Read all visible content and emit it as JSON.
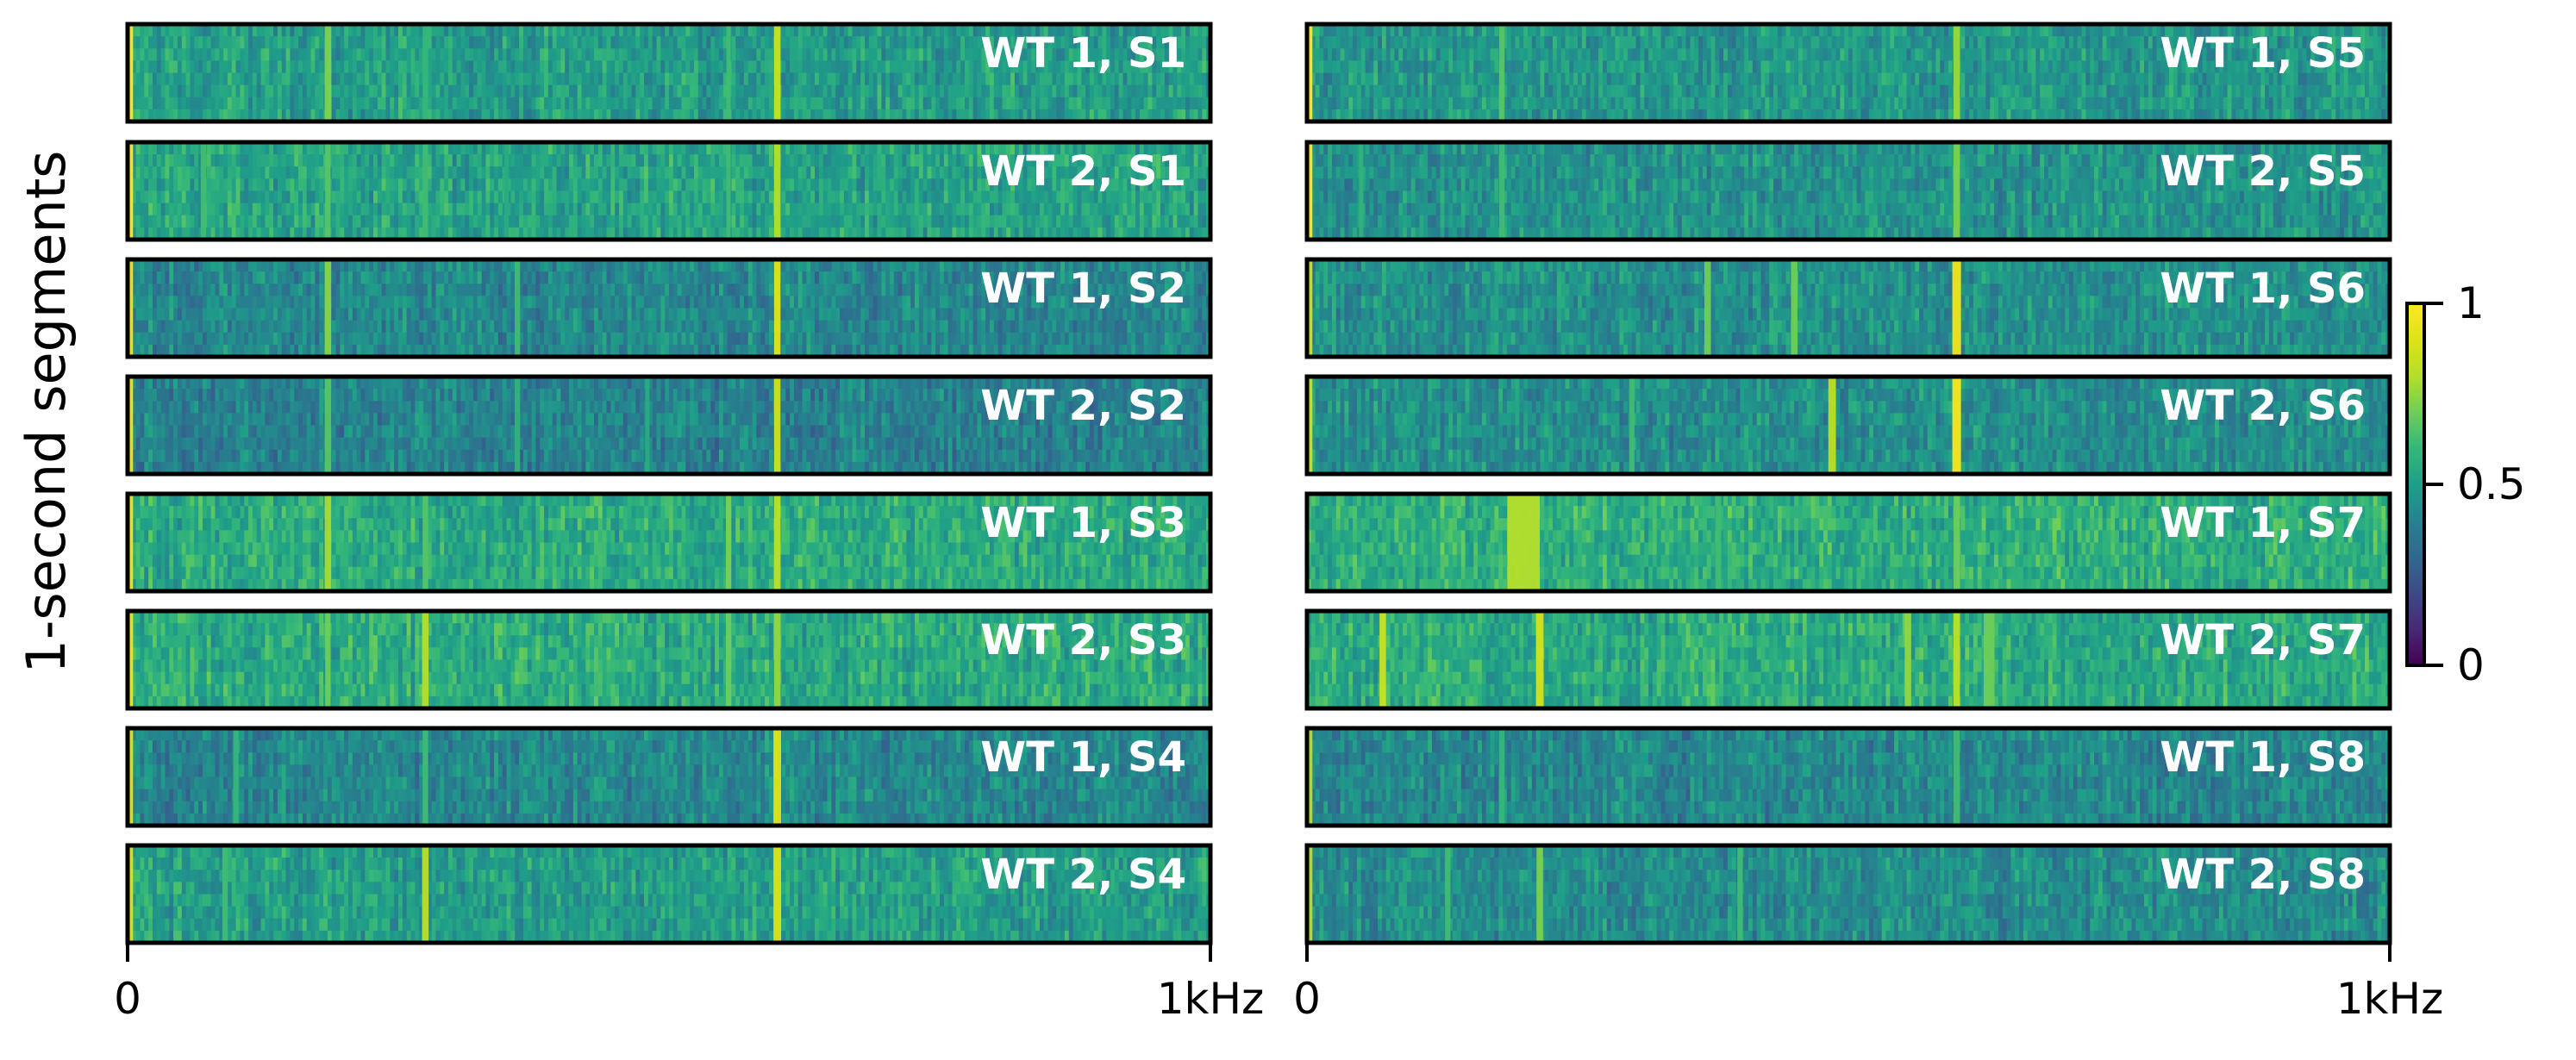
{
  "chart_data": {
    "type": "heatmap",
    "title": "",
    "ylabel": "1-second segments",
    "xlabel": "",
    "x_range": [
      "0",
      "1kHz"
    ],
    "colorbar": {
      "colormap": "viridis",
      "min": 0,
      "max": 1,
      "ticks": [
        {
          "value": 1,
          "label": "1"
        },
        {
          "value": 0.5,
          "label": "0.5"
        },
        {
          "value": 0,
          "label": "0"
        }
      ]
    },
    "baseline_level": 0.5,
    "panels": [
      {
        "name": "left",
        "x_tick_labels": [
          "0",
          "1kHz"
        ],
        "strips": [
          {
            "label": "WT 1, S1",
            "base": 0.5,
            "lines": [
              [
                0.003,
                1.0,
                0.004
              ],
              [
                0.185,
                0.72,
                0.006
              ],
              [
                0.275,
                0.6,
                0.005
              ],
              [
                0.6,
                0.85,
                0.006
              ],
              [
                0.555,
                0.62,
                0.004
              ]
            ]
          },
          {
            "label": "WT 2, S1",
            "base": 0.52,
            "lines": [
              [
                0.003,
                1.0,
                0.004
              ],
              [
                0.07,
                0.62,
                0.005
              ],
              [
                0.185,
                0.66,
                0.005
              ],
              [
                0.275,
                0.62,
                0.005
              ],
              [
                0.35,
                0.55,
                0.004
              ],
              [
                0.555,
                0.62,
                0.004
              ],
              [
                0.6,
                0.8,
                0.006
              ]
            ]
          },
          {
            "label": "WT 1, S2",
            "base": 0.42,
            "lines": [
              [
                0.003,
                0.95,
                0.004
              ],
              [
                0.185,
                0.74,
                0.006
              ],
              [
                0.36,
                0.62,
                0.005
              ],
              [
                0.6,
                0.92,
                0.006
              ]
            ]
          },
          {
            "label": "WT 2, S2",
            "base": 0.4,
            "lines": [
              [
                0.003,
                0.95,
                0.004
              ],
              [
                0.185,
                0.66,
                0.006
              ],
              [
                0.36,
                0.58,
                0.005
              ],
              [
                0.48,
                0.55,
                0.004
              ],
              [
                0.6,
                0.86,
                0.006
              ]
            ]
          },
          {
            "label": "WT 1, S3",
            "base": 0.55,
            "lines": [
              [
                0.003,
                0.95,
                0.004
              ],
              [
                0.185,
                0.78,
                0.006
              ],
              [
                0.275,
                0.66,
                0.005
              ],
              [
                0.555,
                0.72,
                0.005
              ],
              [
                0.6,
                0.82,
                0.006
              ]
            ]
          },
          {
            "label": "WT 2, S3",
            "base": 0.55,
            "lines": [
              [
                0.003,
                0.95,
                0.004
              ],
              [
                0.185,
                0.7,
                0.005
              ],
              [
                0.275,
                0.8,
                0.006
              ],
              [
                0.555,
                0.7,
                0.005
              ],
              [
                0.6,
                0.75,
                0.006
              ]
            ]
          },
          {
            "label": "WT 1, S4",
            "base": 0.42,
            "lines": [
              [
                0.003,
                0.9,
                0.004
              ],
              [
                0.1,
                0.6,
                0.005
              ],
              [
                0.275,
                0.62,
                0.005
              ],
              [
                0.6,
                0.92,
                0.007
              ]
            ]
          },
          {
            "label": "WT 2, S4",
            "base": 0.5,
            "lines": [
              [
                0.003,
                0.9,
                0.004
              ],
              [
                0.09,
                0.62,
                0.005
              ],
              [
                0.275,
                0.82,
                0.006
              ],
              [
                0.6,
                0.9,
                0.007
              ]
            ]
          }
        ]
      },
      {
        "name": "right",
        "x_tick_labels": [
          "0",
          "1kHz"
        ],
        "strips": [
          {
            "label": "WT 1, S5",
            "base": 0.48,
            "lines": [
              [
                0.003,
                1.0,
                0.004
              ],
              [
                0.18,
                0.66,
                0.005
              ],
              [
                0.6,
                0.76,
                0.006
              ]
            ]
          },
          {
            "label": "WT 2, S5",
            "base": 0.46,
            "lines": [
              [
                0.003,
                1.0,
                0.004
              ],
              [
                0.05,
                0.58,
                0.004
              ],
              [
                0.18,
                0.62,
                0.005
              ],
              [
                0.6,
                0.72,
                0.006
              ]
            ]
          },
          {
            "label": "WT 1, S6",
            "base": 0.45,
            "lines": [
              [
                0.003,
                0.85,
                0.004
              ],
              [
                0.37,
                0.7,
                0.006
              ],
              [
                0.45,
                0.7,
                0.006
              ],
              [
                0.6,
                0.96,
                0.008
              ]
            ]
          },
          {
            "label": "WT 2, S6",
            "base": 0.45,
            "lines": [
              [
                0.003,
                0.85,
                0.004
              ],
              [
                0.3,
                0.62,
                0.005
              ],
              [
                0.485,
                0.82,
                0.007
              ],
              [
                0.6,
                0.98,
                0.008
              ]
            ]
          },
          {
            "label": "WT 1, S7",
            "base": 0.56,
            "lines": [
              [
                0.2,
                0.8,
                0.03
              ],
              [
                0.38,
                0.62,
                0.005
              ],
              [
                0.6,
                0.7,
                0.006
              ]
            ]
          },
          {
            "label": "WT 2, S7",
            "base": 0.55,
            "lines": [
              [
                0.07,
                0.85,
                0.006
              ],
              [
                0.215,
                0.88,
                0.007
              ],
              [
                0.555,
                0.75,
                0.006
              ],
              [
                0.6,
                0.82,
                0.006
              ],
              [
                0.63,
                0.7,
                0.01
              ]
            ]
          },
          {
            "label": "WT 1, S8",
            "base": 0.42,
            "lines": [
              [
                0.003,
                0.8,
                0.004
              ],
              [
                0.18,
                0.6,
                0.005
              ],
              [
                0.6,
                0.62,
                0.006
              ]
            ]
          },
          {
            "label": "WT 2, S8",
            "base": 0.44,
            "lines": [
              [
                0.003,
                0.8,
                0.004
              ],
              [
                0.13,
                0.62,
                0.005
              ],
              [
                0.215,
                0.72,
                0.006
              ],
              [
                0.4,
                0.62,
                0.005
              ]
            ]
          }
        ]
      }
    ]
  }
}
